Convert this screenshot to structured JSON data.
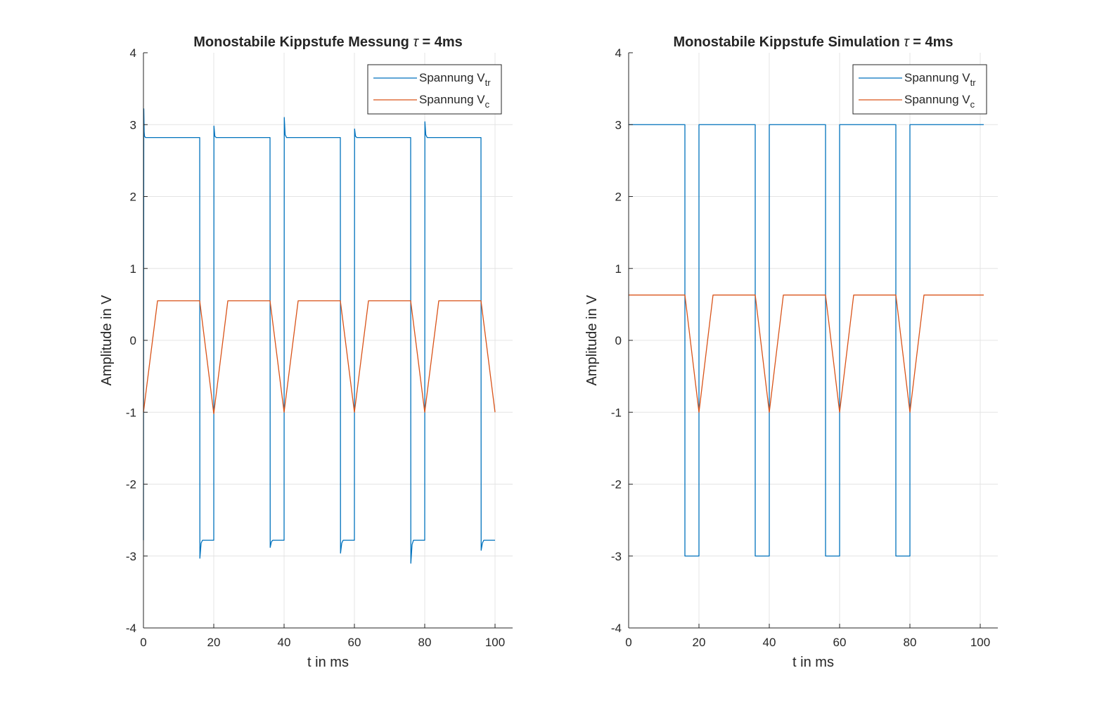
{
  "colors": {
    "vtr": "#0072BD",
    "vc": "#D95319",
    "axis": "#262626",
    "grid": "#e4e4e4"
  },
  "chart_data": [
    {
      "type": "line",
      "title": "Monostabile Kippstufe Messung",
      "title_tau": "τ",
      "title_suffix": " = 4ms",
      "xlabel": "t in ms",
      "ylabel": "Amplitude in V",
      "xlim": [
        0,
        105
      ],
      "ylim": [
        -4,
        4
      ],
      "xticks": [
        "0",
        "20",
        "40",
        "60",
        "80",
        "100"
      ],
      "yticks": [
        "-4",
        "-3",
        "-2",
        "-1",
        "0",
        "1",
        "2",
        "3",
        "4"
      ],
      "grid": true,
      "legend_position": "top-right",
      "series": [
        {
          "name": "Spannung V",
          "name_sub": "tr",
          "x": [
            0,
            0.1,
            0.2,
            0.3,
            0.6,
            16,
            16.05,
            16.4,
            16.8,
            20,
            20.05,
            20.3,
            20.7,
            36,
            36.05,
            36.4,
            36.8,
            40,
            40.05,
            40.3,
            40.7,
            56,
            56.05,
            56.4,
            56.8,
            60,
            60.05,
            60.3,
            60.7,
            76,
            76.05,
            76.4,
            76.8,
            80,
            80.05,
            80.3,
            80.7,
            96,
            96.05,
            96.4,
            96.8,
            100
          ],
          "y": [
            -2.78,
            3.22,
            2.9,
            2.84,
            2.82,
            2.82,
            -3.03,
            -2.82,
            -2.78,
            -2.78,
            2.98,
            2.84,
            2.82,
            2.82,
            -2.88,
            -2.8,
            -2.78,
            -2.78,
            3.1,
            2.86,
            2.82,
            2.82,
            -2.96,
            -2.82,
            -2.78,
            -2.78,
            2.94,
            2.84,
            2.82,
            2.82,
            -3.1,
            -2.84,
            -2.78,
            -2.78,
            3.04,
            2.86,
            2.82,
            2.82,
            -2.92,
            -2.82,
            -2.78,
            -2.78
          ]
        },
        {
          "name": "Spannung V",
          "name_sub": "c",
          "x": [
            0,
            4,
            16,
            20,
            24,
            36,
            40,
            44,
            56,
            60,
            64,
            76,
            80,
            84,
            96,
            100
          ],
          "y": [
            -1.0,
            0.55,
            0.55,
            -1.02,
            0.55,
            0.55,
            -1.0,
            0.55,
            0.55,
            -1.0,
            0.55,
            0.55,
            -1.0,
            0.55,
            0.55,
            -1.0
          ]
        }
      ]
    },
    {
      "type": "line",
      "title": "Monostabile Kippstufe Simulation",
      "title_tau": "τ",
      "title_suffix": " = 4ms",
      "xlabel": "t in ms",
      "ylabel": "Amplitude in V",
      "xlim": [
        0,
        105
      ],
      "ylim": [
        -4,
        4
      ],
      "xticks": [
        "0",
        "20",
        "40",
        "60",
        "80",
        "100"
      ],
      "yticks": [
        "-4",
        "-3",
        "-2",
        "-1",
        "0",
        "1",
        "2",
        "3",
        "4"
      ],
      "grid": true,
      "legend_position": "top-right",
      "series": [
        {
          "name": "Spannung V",
          "name_sub": "tr",
          "x": [
            0,
            16,
            16,
            20,
            20,
            36,
            36,
            40,
            40,
            56,
            56,
            60,
            60,
            76,
            76,
            80,
            80,
            101
          ],
          "y": [
            3,
            3,
            -3,
            -3,
            3,
            3,
            -3,
            -3,
            3,
            3,
            -3,
            -3,
            3,
            3,
            -3,
            -3,
            3,
            3
          ]
        },
        {
          "name": "Spannung V",
          "name_sub": "c",
          "x": [
            0,
            16,
            20,
            24,
            36,
            40,
            44,
            56,
            60,
            64,
            76,
            80,
            84,
            101
          ],
          "y": [
            0.63,
            0.63,
            -1.0,
            0.63,
            0.63,
            -1.0,
            0.63,
            0.63,
            -1.0,
            0.63,
            0.63,
            -1.0,
            0.63,
            0.63
          ]
        }
      ]
    }
  ]
}
